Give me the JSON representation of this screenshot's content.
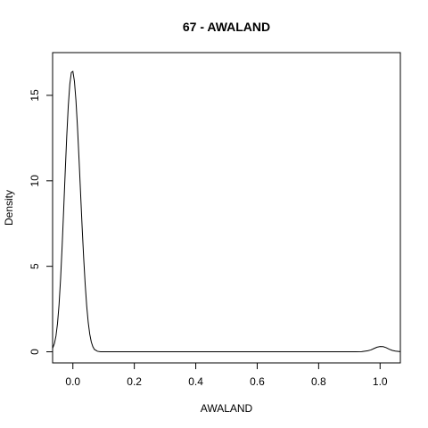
{
  "chart_data": {
    "type": "line",
    "title": "67 - AWALAND",
    "xlabel": "AWALAND",
    "ylabel": "Density",
    "xlim": [
      -0.066,
      1.066
    ],
    "ylim": [
      -0.65,
      17.5
    ],
    "x_ticks": [
      0.0,
      0.2,
      0.4,
      0.6,
      0.8,
      1.0
    ],
    "x_tick_labels": [
      "0.0",
      "0.2",
      "0.4",
      "0.6",
      "0.8",
      "1.0"
    ],
    "y_ticks": [
      0,
      5,
      10,
      15
    ],
    "y_tick_labels": [
      "0",
      "5",
      "10",
      "15"
    ],
    "grid": false,
    "legend": "none",
    "series": [
      {
        "x": [
          -0.066,
          -0.06,
          -0.055,
          -0.05,
          -0.045,
          -0.04,
          -0.035,
          -0.03,
          -0.025,
          -0.02,
          -0.015,
          -0.01,
          -0.005,
          0.0,
          0.005,
          0.01,
          0.015,
          0.02,
          0.025,
          0.03,
          0.035,
          0.04,
          0.045,
          0.05,
          0.055,
          0.06,
          0.065,
          0.07,
          0.08,
          0.09,
          0.1,
          0.2,
          0.3,
          0.4,
          0.5,
          0.6,
          0.7,
          0.8,
          0.9,
          0.92,
          0.94,
          0.96,
          0.97,
          0.98,
          0.99,
          1.0,
          1.01,
          1.02,
          1.03,
          1.04,
          1.05,
          1.066
        ],
        "y": [
          0.2,
          0.49,
          0.93,
          1.66,
          2.76,
          4.28,
          6.17,
          8.3,
          10.51,
          12.6,
          14.37,
          15.65,
          16.34,
          16.4,
          15.83,
          14.7,
          13.13,
          11.27,
          9.3,
          7.34,
          5.53,
          3.96,
          2.68,
          1.71,
          1.02,
          0.57,
          0.3,
          0.14,
          0.03,
          0.0,
          0.0,
          0.0,
          0.0,
          0.0,
          0.0,
          0.0,
          0.0,
          0.0,
          0.0,
          0.0,
          0.01,
          0.06,
          0.11,
          0.19,
          0.27,
          0.31,
          0.3,
          0.24,
          0.15,
          0.08,
          0.04,
          0.01
        ]
      }
    ]
  }
}
